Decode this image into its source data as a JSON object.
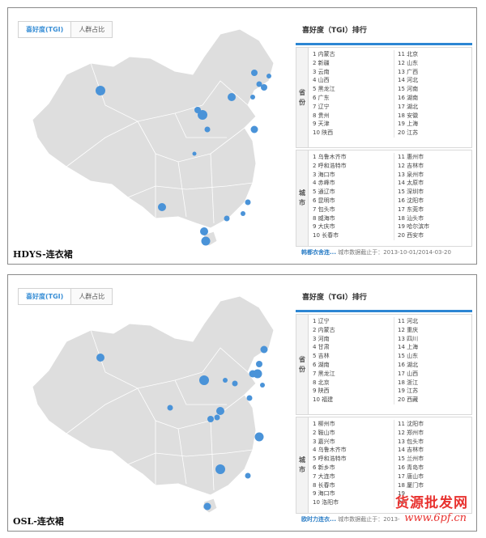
{
  "panels": [
    {
      "caption": "HDYS-连衣裙",
      "tabs": [
        "喜好度(TGI)",
        "人群占比"
      ],
      "rank_title": "喜好度（TGI）排行",
      "province_label": "省份",
      "city_label": "城市",
      "provinces_left": [
        "1  内蒙古",
        "2  新疆",
        "3  云南",
        "4  山西",
        "5  黑龙江",
        "6  广东",
        "7  辽宁",
        "8  贵州",
        "9  天津",
        "10 陕西"
      ],
      "provinces_right": [
        "11 北京",
        "12 山东",
        "13 广西",
        "14 河北",
        "15 河南",
        "16 湖南",
        "17 湖北",
        "18 安徽",
        "19 上海",
        "20 江苏"
      ],
      "cities_left": [
        "1  乌鲁木齐市",
        "2  呼和浩特市",
        "3  海口市",
        "4  赤峰市",
        "5  通辽市",
        "6  昆明市",
        "7  包头市",
        "8  威海市",
        "9  大庆市",
        "10 长春市"
      ],
      "cities_right": [
        "11 惠州市",
        "12 吉林市",
        "13 泉州市",
        "14 太原市",
        "15 深圳市",
        "16 沈阳市",
        "17 东莞市",
        "18 汕头市",
        "19 哈尔滨市",
        "20 西安市"
      ],
      "footer_link": "韩都衣舍连...",
      "footer_text": " 城市数据截止于：2013-10-01/2014-03-20"
    },
    {
      "caption": "OSL-连衣裙",
      "tabs": [
        "喜好度(TGI)",
        "人群占比"
      ],
      "rank_title": "喜好度（TGI）排行",
      "province_label": "省份",
      "city_label": "城市",
      "provinces_left": [
        "1  辽宁",
        "2  内蒙古",
        "3  河南",
        "4  甘肃",
        "5  吉林",
        "6  湖南",
        "7  黑龙江",
        "8  北京",
        "9  陕西",
        "10 福建"
      ],
      "provinces_right": [
        "11 河北",
        "12 重庆",
        "13 四川",
        "14 上海",
        "15 山东",
        "16 湖北",
        "17 山西",
        "18 浙江",
        "19 江苏",
        "20 西藏"
      ],
      "cities_left": [
        "1  柳州市",
        "2  鞍山市",
        "3  嘉兴市",
        "4  乌鲁木齐市",
        "5  呼和浩特市",
        "6  新乡市",
        "7  大连市",
        "8  长春市",
        "9  海口市",
        "10 洛阳市"
      ],
      "cities_right": [
        "11 沈阳市",
        "12 郑州市",
        "13 包头市",
        "14 吉林市",
        "15 兰州市",
        "16 青岛市",
        "17 唐山市",
        "18 厦门市",
        "19 ",
        "20 "
      ],
      "footer_link": "欧时力连衣...",
      "footer_text": " 城市数据截止于：2013-"
    }
  ],
  "watermark": {
    "text": "货源批发网",
    "url": "www.6pf.cn"
  },
  "colors": {
    "accent": "#2c86d3",
    "map_fill": "#dcdcdc",
    "map_stroke": "#ffffff",
    "bubble": "#4a93d8"
  }
}
